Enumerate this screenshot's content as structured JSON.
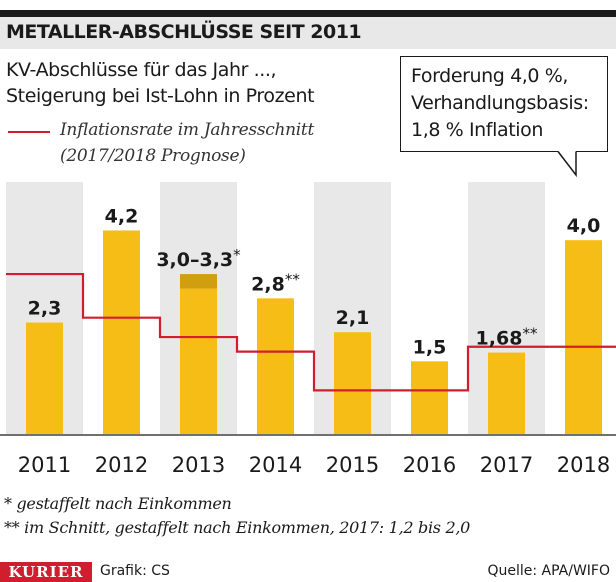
{
  "header": {
    "title": "METALLER-ABSCHLÜSSE SEIT 2011"
  },
  "subtitle": [
    "KV-Abschlüsse für das Jahr ...,",
    "Steigerung bei Ist-Lohn in Prozent"
  ],
  "legend": {
    "lines": [
      "Inflationsrate im Jahresschnitt",
      "(2017/2018 Prognose)"
    ]
  },
  "callout": {
    "lines": [
      "Forderung 4,0 %,",
      "Verhandlungsbasis:",
      "1,8 % Inflation"
    ]
  },
  "colors": {
    "bar": "#f7bd17",
    "bar_extra": "#d19e10",
    "inflation_line": "#d01e2e",
    "band": "#e8e8e8",
    "header_bg": "#e8e8e8"
  },
  "chart_data": {
    "type": "bar",
    "categories": [
      "2011",
      "2012",
      "2013",
      "2014",
      "2015",
      "2016",
      "2017",
      "2018"
    ],
    "values": [
      2.3,
      4.2,
      3.0,
      2.8,
      2.1,
      1.5,
      1.68,
      4.0
    ],
    "range_top": [
      null,
      null,
      3.3,
      null,
      null,
      null,
      null,
      null
    ],
    "data_labels": [
      "2,3",
      "4,2",
      "3,0–3,3",
      "2,8",
      "2,1",
      "1,5",
      "1,68",
      "4,0"
    ],
    "label_marks": [
      "",
      "",
      "*",
      "**",
      "",
      "",
      "**",
      ""
    ],
    "inflation": [
      3.3,
      2.4,
      2.0,
      1.7,
      0.9,
      0.9,
      1.8,
      1.8
    ],
    "ylim": [
      0,
      5.2
    ],
    "grid": false
  },
  "footnotes": [
    "*  gestaffelt nach Einkommen",
    "**  im Schnitt, gestaffelt nach Einkommen, 2017: 1,2 bis 2,0"
  ],
  "footer": {
    "logo": "KURIER",
    "credit": "Grafik: CS",
    "source": "Quelle: APA/WIFO"
  }
}
